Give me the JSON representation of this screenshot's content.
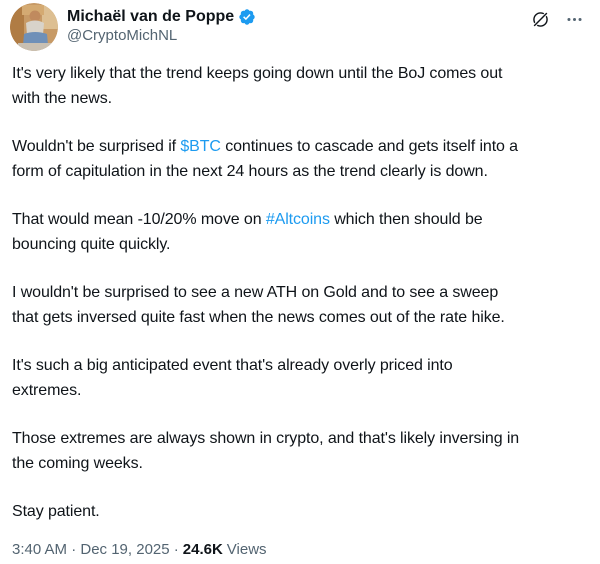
{
  "colors": {
    "text": "#0f1419",
    "secondary": "#536471",
    "link_blue": "#1d9bf0",
    "verified_blue": "#1d9bf0",
    "background": "#ffffff"
  },
  "header": {
    "display_name": "Michaël van de Poppe",
    "handle": "@CryptoMichNL",
    "verified_icon": "verified-badge-icon",
    "grok_icon": "grok-actions-icon",
    "more_icon": "more-options-icon"
  },
  "tweet": {
    "paragraphs": [
      {
        "runs": [
          {
            "text": "It's very likely that the trend keeps going down until the BoJ comes out"
          },
          {
            "break": true
          },
          {
            "text": "with the news."
          }
        ]
      },
      {
        "runs": [
          {
            "text": "Wouldn't be surprised if "
          },
          {
            "text": "$BTC",
            "link": true,
            "name": "cashtag-link-btc"
          },
          {
            "text": " continues to cascade and gets itself into a"
          },
          {
            "break": true
          },
          {
            "text": "form of capitulation in the next 24 hours as the trend clearly is down."
          }
        ]
      },
      {
        "runs": [
          {
            "text": "That would mean -10/20% move on "
          },
          {
            "text": "#Altcoins",
            "link": true,
            "name": "hashtag-link-altcoins"
          },
          {
            "text": " which then should be"
          },
          {
            "break": true
          },
          {
            "text": "bouncing quite quickly."
          }
        ]
      },
      {
        "runs": [
          {
            "text": "I wouldn't be surprised to see a new ATH on Gold and to see a sweep"
          },
          {
            "break": true
          },
          {
            "text": "that gets inversed quite fast when the news comes out of the rate hike."
          }
        ]
      },
      {
        "runs": [
          {
            "text": "It's such a big anticipated event that's already overly priced into"
          },
          {
            "break": true
          },
          {
            "text": "extremes."
          }
        ]
      },
      {
        "runs": [
          {
            "text": "Those extremes are always shown in crypto, and that's likely inversing in"
          },
          {
            "break": true
          },
          {
            "text": "the coming weeks."
          }
        ]
      },
      {
        "runs": [
          {
            "text": "Stay patient."
          }
        ]
      }
    ]
  },
  "footer": {
    "timestamp": "3:40 AM · Dec 19, 2025 ·",
    "views_count": "24.6K",
    "views_label": "Views"
  }
}
